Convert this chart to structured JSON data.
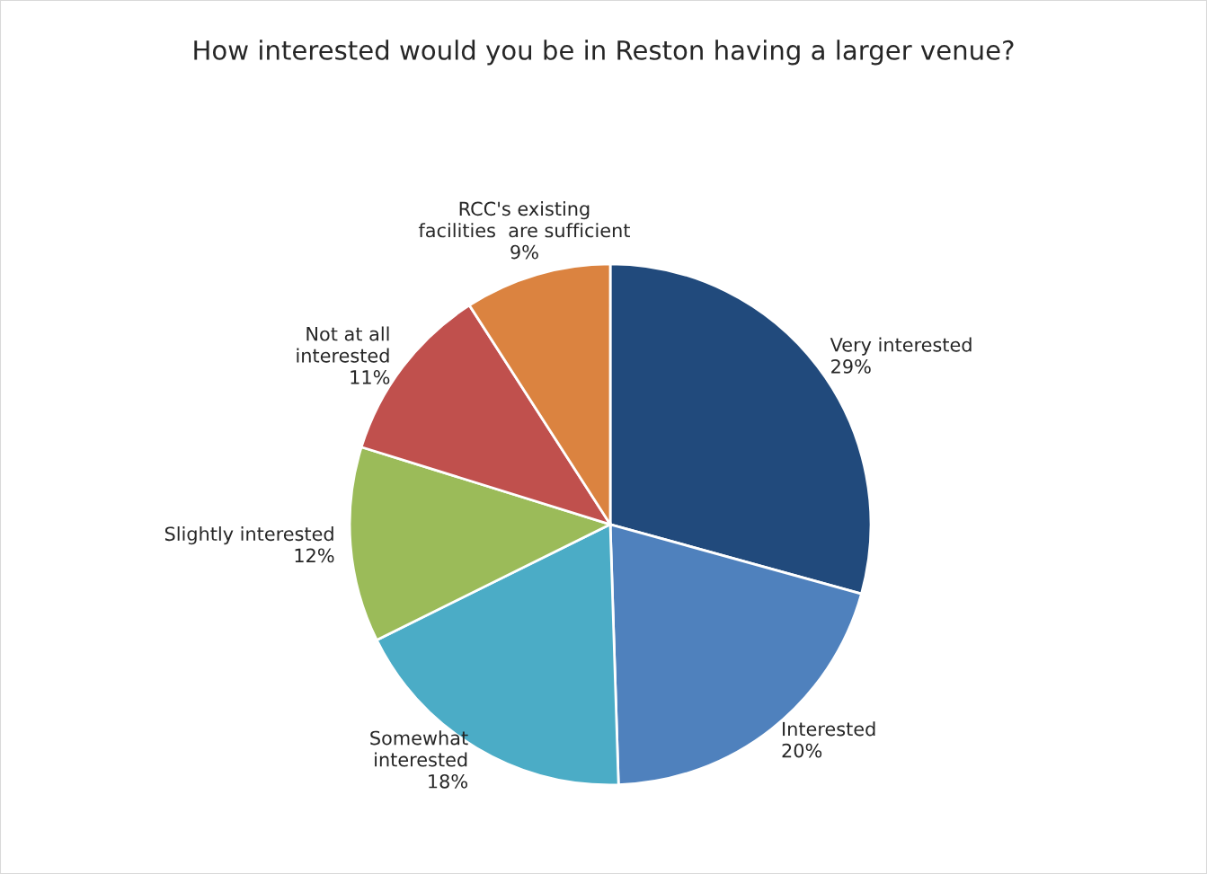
{
  "chart_data": {
    "type": "pie",
    "title": "How interested would you be in Reston having a larger venue?",
    "categories": [
      "Very interested",
      "Interested",
      "Somewhat\ninterested",
      "Slightly interested",
      "Not at all\ninterested",
      "RCC's existing\nfacilities  are sufficient"
    ],
    "values": [
      29,
      20,
      18,
      12,
      11,
      9
    ],
    "value_labels": [
      "29%",
      "20%",
      "18%",
      "12%",
      "11%",
      "9%"
    ],
    "colors": [
      "#214a7c",
      "#4f81bd",
      "#4bacc6",
      "#9bbb59",
      "#c0504d",
      "#db8340"
    ],
    "legend": false
  }
}
